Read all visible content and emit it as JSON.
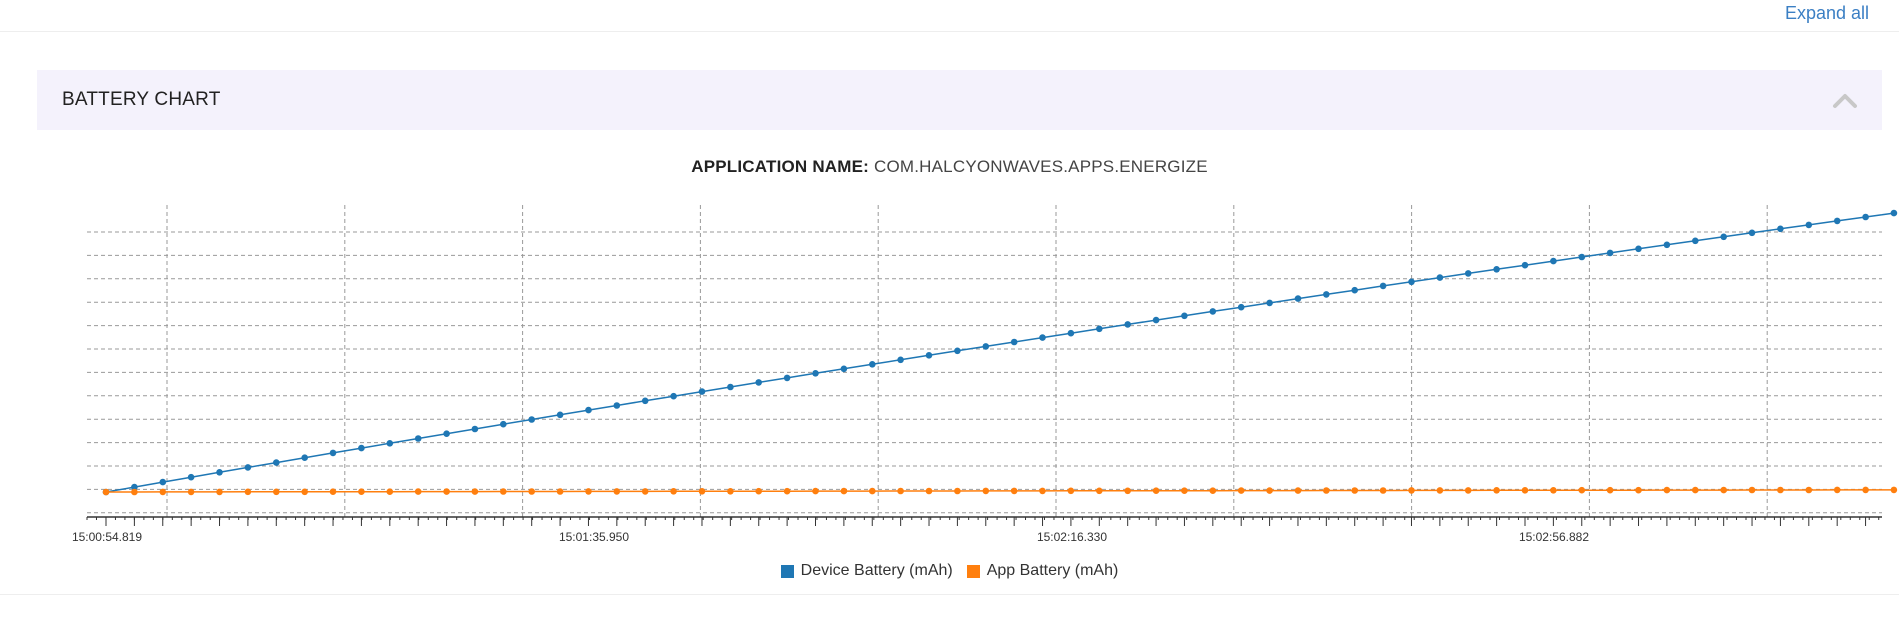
{
  "toolbar": {
    "expand_all_label": "Expand all"
  },
  "panel": {
    "title": "BATTERY CHART"
  },
  "app": {
    "name_label": "APPLICATION NAME:",
    "name_value": "COM.HALCYONWAVES.APPS.ENERGIZE"
  },
  "icons": {
    "collapse": "chevron-up-icon"
  },
  "colors": {
    "device": "#1f77b4",
    "app": "#ff7f0e",
    "grid": "#999999",
    "axis": "#333333",
    "panel_bg": "#f4f2fc",
    "link": "#3b7fc4"
  },
  "chart_data": {
    "type": "line",
    "title": "",
    "xlabel": "",
    "ylabel": "",
    "x_tick_labels": [
      "15:00:54.819",
      "15:01:35.950",
      "15:02:16.330",
      "15:02:56.882"
    ],
    "y_tick_labels": [],
    "grid": true,
    "legend_position": "bottom-center",
    "point_count": 64,
    "ylim": [
      0,
      110
    ],
    "series": [
      {
        "name": "Device Battery (mAh)",
        "color": "#1f77b4",
        "start": 0,
        "end": 104,
        "curve": "slightly-concave"
      },
      {
        "name": "App Battery (mAh)",
        "color": "#ff7f0e",
        "start": 0,
        "end": 0.8,
        "curve": "nearly-flat"
      }
    ]
  }
}
